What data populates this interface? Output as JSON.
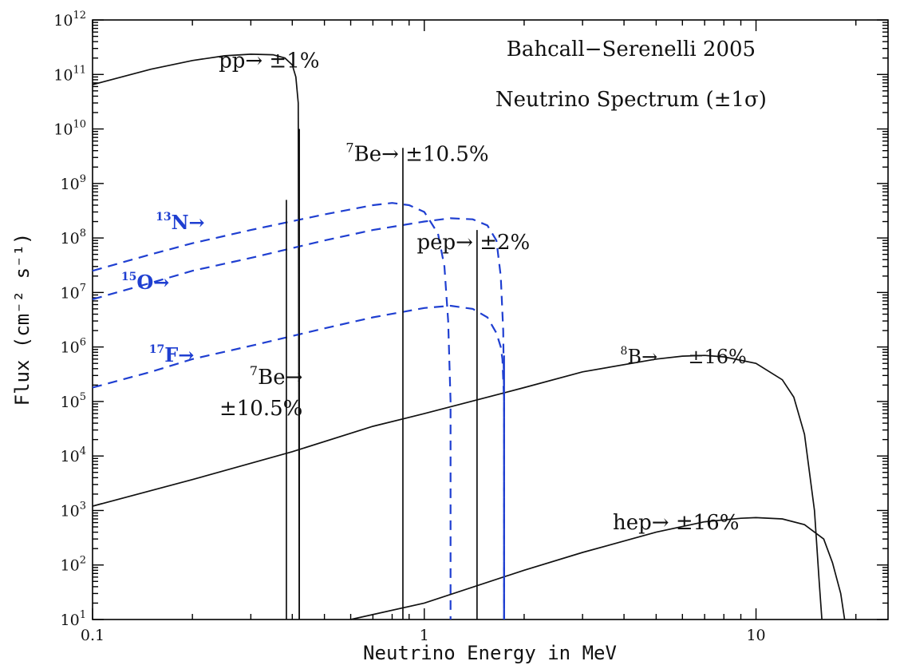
{
  "chart_data": {
    "type": "line",
    "title": "Bahcall−Serenelli 2005",
    "subtitle": "Neutrino Spectrum (±1σ)",
    "xlabel": "Neutrino Energy in MeV",
    "ylabel": "Flux (cm⁻² s⁻¹)",
    "x_scale": "log",
    "y_scale": "log",
    "xlim": [
      0.1,
      25
    ],
    "ylim": [
      10,
      1000000000000.0
    ],
    "x_ticks": [
      {
        "value": 0.1,
        "label": "0.1"
      },
      {
        "value": 1,
        "label": "1"
      },
      {
        "value": 10,
        "label": "10"
      }
    ],
    "y_ticks": [
      {
        "exp": 1,
        "base": "10",
        "sup": "1"
      },
      {
        "exp": 2,
        "base": "10",
        "sup": "2"
      },
      {
        "exp": 3,
        "base": "10",
        "sup": "3"
      },
      {
        "exp": 4,
        "base": "10",
        "sup": "4"
      },
      {
        "exp": 5,
        "base": "10",
        "sup": "5"
      },
      {
        "exp": 6,
        "base": "10",
        "sup": "6"
      },
      {
        "exp": 7,
        "base": "10",
        "sup": "7"
      },
      {
        "exp": 8,
        "base": "10",
        "sup": "8"
      },
      {
        "exp": 9,
        "base": "10",
        "sup": "9"
      },
      {
        "exp": 10,
        "base": "10",
        "sup": "10"
      },
      {
        "exp": 11,
        "base": "10",
        "sup": "11"
      },
      {
        "exp": 12,
        "base": "10",
        "sup": "12"
      }
    ],
    "continuous_series": [
      {
        "id": "pp",
        "style": "solid",
        "color": "#111111",
        "points": [
          [
            0.1,
            65000000000.0
          ],
          [
            0.15,
            125000000000.0
          ],
          [
            0.2,
            180000000000.0
          ],
          [
            0.25,
            220000000000.0
          ],
          [
            0.3,
            235000000000.0
          ],
          [
            0.35,
            230000000000.0
          ],
          [
            0.38,
            200000000000.0
          ],
          [
            0.4,
            150000000000.0
          ],
          [
            0.41,
            90000000000.0
          ],
          [
            0.417,
            30000000000.0
          ],
          [
            0.42,
            10
          ]
        ]
      },
      {
        "id": "13N",
        "style": "dashed",
        "color": "#1f3fd1",
        "points": [
          [
            0.1,
            25000000.0
          ],
          [
            0.15,
            50000000.0
          ],
          [
            0.2,
            80000000.0
          ],
          [
            0.3,
            140000000.0
          ],
          [
            0.5,
            270000000.0
          ],
          [
            0.7,
            400000000.0
          ],
          [
            0.8,
            440000000.0
          ],
          [
            0.9,
            400000000.0
          ],
          [
            1.0,
            300000000.0
          ],
          [
            1.1,
            120000000.0
          ],
          [
            1.15,
            30000000.0
          ],
          [
            1.18,
            3000000.0
          ],
          [
            1.2,
            100000.0
          ],
          [
            1.2,
            10
          ]
        ]
      },
      {
        "id": "15O",
        "style": "dashed",
        "color": "#1f3fd1",
        "points": [
          [
            0.1,
            7500000.0
          ],
          [
            0.15,
            15000000.0
          ],
          [
            0.2,
            25000000.0
          ],
          [
            0.3,
            43000000.0
          ],
          [
            0.5,
            90000000.0
          ],
          [
            0.7,
            140000000.0
          ],
          [
            1.0,
            200000000.0
          ],
          [
            1.2,
            230000000.0
          ],
          [
            1.4,
            220000000.0
          ],
          [
            1.55,
            170000000.0
          ],
          [
            1.65,
            90000000.0
          ],
          [
            1.7,
            20000000.0
          ],
          [
            1.73,
            2000000.0
          ],
          [
            1.74,
            100000.0
          ],
          [
            1.74,
            10
          ]
        ]
      },
      {
        "id": "17F",
        "style": "dashed",
        "color": "#1f3fd1",
        "points": [
          [
            0.1,
            180000.0
          ],
          [
            0.15,
            350000.0
          ],
          [
            0.2,
            600000.0
          ],
          [
            0.3,
            1050000.0
          ],
          [
            0.5,
            2200000.0
          ],
          [
            0.7,
            3500000.0
          ],
          [
            1.0,
            5200000.0
          ],
          [
            1.2,
            5700000.0
          ],
          [
            1.4,
            5000000.0
          ],
          [
            1.55,
            3500000.0
          ],
          [
            1.65,
            1800000.0
          ],
          [
            1.7,
            1000000.0
          ],
          [
            1.72,
            600000.0
          ],
          [
            1.74,
            100000.0
          ],
          [
            1.74,
            10
          ]
        ]
      },
      {
        "id": "8B",
        "style": "solid",
        "color": "#111111",
        "points": [
          [
            0.1,
            1200.0
          ],
          [
            0.2,
            3700.0
          ],
          [
            0.4,
            12000.0
          ],
          [
            0.7,
            35000.0
          ],
          [
            1.0,
            60000.0
          ],
          [
            2.0,
            180000.0
          ],
          [
            3.0,
            350000.0
          ],
          [
            5.0,
            600000.0
          ],
          [
            6.0,
            680000.0
          ],
          [
            7.0,
            700000.0
          ],
          [
            8.0,
            660000.0
          ],
          [
            10.0,
            500000.0
          ],
          [
            12.0,
            250000.0
          ],
          [
            13.0,
            120000.0
          ],
          [
            14.0,
            25000.0
          ],
          [
            15.0,
            1000.0
          ],
          [
            15.5,
            50
          ],
          [
            15.8,
            10
          ]
        ]
      },
      {
        "id": "hep",
        "style": "solid",
        "color": "#111111",
        "points": [
          [
            0.6,
            10
          ],
          [
            1.0,
            20
          ],
          [
            2.0,
            80
          ],
          [
            3.0,
            170
          ],
          [
            5.0,
            400
          ],
          [
            7.0,
            620
          ],
          [
            9.0,
            720
          ],
          [
            10.0,
            740
          ],
          [
            12.0,
            700
          ],
          [
            14.0,
            550
          ],
          [
            16.0,
            300
          ],
          [
            17.0,
            110
          ],
          [
            18.0,
            30
          ],
          [
            18.5,
            10
          ]
        ]
      }
    ],
    "lines": [
      {
        "id": "7Be-1",
        "energy": 0.384,
        "flux": 500000000.0,
        "style": "solid",
        "color": "#111111"
      },
      {
        "id": "pp-edge",
        "energy": 0.42,
        "flux": 10000000000.0,
        "style": "solid",
        "color": "#111111"
      },
      {
        "id": "7Be-2",
        "energy": 0.862,
        "flux": 4500000000.0,
        "style": "solid",
        "color": "#111111"
      },
      {
        "id": "pep",
        "energy": 1.442,
        "flux": 140000000.0,
        "style": "solid",
        "color": "#111111"
      },
      {
        "id": "17F-edge",
        "energy": 1.74,
        "flux": 700000.0,
        "style": "solid",
        "color": "#1f3fd1"
      }
    ],
    "annotations": [
      {
        "id": "ann-title",
        "parts": [
          {
            "t": "Bahcall−Serenelli 2005"
          }
        ],
        "x": 4.2,
        "y": 220000000000.0,
        "size": 26,
        "color": "black",
        "anchor": "middle"
      },
      {
        "id": "ann-subtitle",
        "parts": [
          {
            "t": "Neutrino Spectrum (±1σ)"
          }
        ],
        "x": 4.2,
        "y": 26000000000.0,
        "size": 26,
        "color": "black",
        "anchor": "middle"
      },
      {
        "id": "ann-pp",
        "parts": [
          {
            "t": "pp→ ±1%"
          }
        ],
        "x": 0.24,
        "y": 135000000000.0,
        "size": 26,
        "color": "black",
        "anchor": "start"
      },
      {
        "id": "ann-7be-top",
        "parts": [
          {
            "t": "7",
            "sup": true
          },
          {
            "t": "Be→ ±10.5%"
          }
        ],
        "x": 0.58,
        "y": 2600000000.0,
        "size": 26,
        "color": "black",
        "anchor": "start"
      },
      {
        "id": "ann-pep",
        "parts": [
          {
            "t": "pep→ ±2%"
          }
        ],
        "x": 0.95,
        "y": 63000000.0,
        "size": 26,
        "color": "black",
        "anchor": "start"
      },
      {
        "id": "ann-7be-low-1",
        "parts": [
          {
            "t": "7",
            "sup": true
          },
          {
            "t": "Be→"
          }
        ],
        "x": 0.43,
        "y": 210000.0,
        "size": 26,
        "color": "black",
        "anchor": "end"
      },
      {
        "id": "ann-7be-low-2",
        "parts": [
          {
            "t": "±10.5%"
          }
        ],
        "x": 0.43,
        "y": 56000.0,
        "size": 26,
        "color": "black",
        "anchor": "end"
      },
      {
        "id": "ann-8b",
        "parts": [
          {
            "t": "8",
            "sup": true
          },
          {
            "t": "B→     ±16%"
          }
        ],
        "x": 3.9,
        "y": 500000.0,
        "size": 24,
        "color": "black",
        "anchor": "start"
      },
      {
        "id": "ann-hep",
        "parts": [
          {
            "t": "hep→ ±16%"
          }
        ],
        "x": 3.7,
        "y": 450.0,
        "size": 26,
        "color": "black",
        "anchor": "start"
      },
      {
        "id": "ann-13n",
        "parts": [
          {
            "t": "13",
            "sup": true
          },
          {
            "t": "N→"
          }
        ],
        "x": 0.155,
        "y": 145000000.0,
        "size": 24,
        "color": "blue",
        "anchor": "start"
      },
      {
        "id": "ann-15o",
        "parts": [
          {
            "t": "15",
            "sup": true
          },
          {
            "t": "O→"
          }
        ],
        "x": 0.122,
        "y": 11500000.0,
        "size": 24,
        "color": "blue",
        "anchor": "start"
      },
      {
        "id": "ann-17f",
        "parts": [
          {
            "t": "17",
            "sup": true
          },
          {
            "t": "F→"
          }
        ],
        "x": 0.148,
        "y": 540000.0,
        "size": 24,
        "color": "blue",
        "anchor": "start"
      }
    ]
  }
}
